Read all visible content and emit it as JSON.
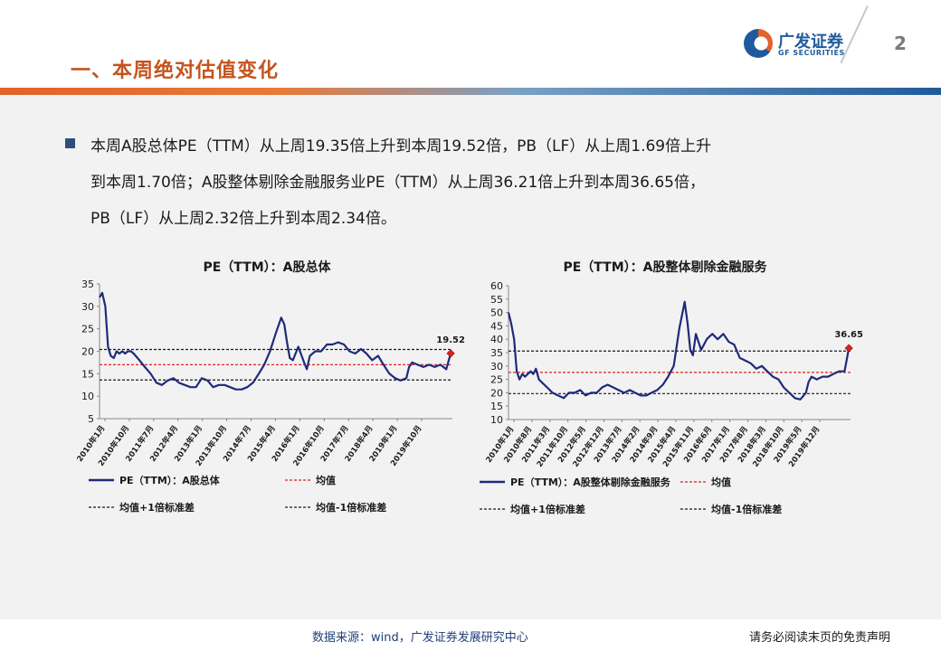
{
  "header": {
    "title": "一、本周绝对估值变化",
    "logo_cn": "广发证券",
    "logo_en": "GF SECURITIES",
    "page_number": "2",
    "colors": {
      "title": "#c4541f",
      "brand_blue": "#1f5b9c",
      "brand_orange": "#e2622a"
    }
  },
  "summary": {
    "line1": "本周A股总体PE（TTM）从上周19.35倍上升到本周19.52倍，PB（LF）从上周1.69倍上升",
    "line2": "到本周1.70倍；A股整体剔除金融服务业PE（TTM）从上周36.21倍上升到本周36.65倍，",
    "line3": "PB（LF）从上周2.32倍上升到本周2.34倍。"
  },
  "chart_data": [
    {
      "type": "line",
      "title": "PE（TTM）：A股总体",
      "ylim": [
        5,
        35
      ],
      "yticks": [
        "5",
        "10",
        "15",
        "20",
        "25",
        "30",
        "35"
      ],
      "x_tick_labels": [
        "2010年1月",
        "2010年10月",
        "2011年7月",
        "2012年4月",
        "2013年1月",
        "2013年10月",
        "2014年7月",
        "2015年4月",
        "2016年1月",
        "2016年10月",
        "2017年7月",
        "2018年4月",
        "2019年1月",
        "2019年10月"
      ],
      "x_range": [
        2010.0,
        2020.35
      ],
      "grid": false,
      "legend_position": "bottom",
      "series": [
        {
          "name": "PE（TTM）：A股总体",
          "color": "#1f2a7a",
          "x": [
            2010.0,
            2010.08,
            2010.17,
            2010.25,
            2010.33,
            2010.42,
            2010.5,
            2010.58,
            2010.67,
            2010.75,
            2010.83,
            2010.92,
            2011.0,
            2011.17,
            2011.33,
            2011.5,
            2011.67,
            2011.83,
            2012.0,
            2012.17,
            2012.33,
            2012.5,
            2012.67,
            2012.83,
            2013.0,
            2013.17,
            2013.33,
            2013.5,
            2013.67,
            2013.83,
            2014.0,
            2014.17,
            2014.33,
            2014.5,
            2014.67,
            2014.83,
            2015.0,
            2015.17,
            2015.33,
            2015.42,
            2015.5,
            2015.58,
            2015.67,
            2015.83,
            2016.0,
            2016.08,
            2016.17,
            2016.33,
            2016.5,
            2016.67,
            2016.83,
            2017.0,
            2017.17,
            2017.33,
            2017.5,
            2017.67,
            2017.83,
            2018.0,
            2018.17,
            2018.33,
            2018.5,
            2018.67,
            2018.83,
            2019.0,
            2019.08,
            2019.17,
            2019.33,
            2019.5,
            2019.67,
            2019.83,
            2020.0,
            2020.17,
            2020.3
          ],
          "values": [
            32,
            33,
            30,
            21,
            19,
            18.5,
            20,
            19.5,
            20,
            19.5,
            20,
            20,
            19.5,
            18,
            16.5,
            15,
            13,
            12.5,
            13.5,
            14,
            13,
            12.5,
            12,
            12,
            14,
            13.5,
            12,
            12.5,
            12.5,
            12,
            11.5,
            11.5,
            12,
            13,
            15,
            17,
            20,
            24,
            27.5,
            26,
            22,
            18.5,
            18,
            21,
            17.5,
            16,
            19,
            20,
            20,
            21.5,
            21.5,
            22,
            21.5,
            20,
            19.5,
            20.5,
            19.5,
            18,
            19,
            17,
            15,
            14,
            13.5,
            14,
            16.5,
            17.5,
            17,
            16.5,
            17,
            16.5,
            17,
            16,
            19.52
          ]
        },
        {
          "name": "均值",
          "color": "#e02020",
          "values": [
            17.0
          ]
        },
        {
          "name": "均值+1倍标准差",
          "color": "#1a1a1a",
          "values": [
            20.4
          ]
        },
        {
          "name": "均值-1倍标准差",
          "color": "#1a1a1a",
          "values": [
            13.6
          ]
        }
      ],
      "end_label": "19.52",
      "end_value": 19.52
    },
    {
      "type": "line",
      "title": "PE（TTM）：A股整体剔除金融服务",
      "ylim": [
        10,
        60
      ],
      "yticks": [
        "10",
        "15",
        "20",
        "25",
        "30",
        "35",
        "40",
        "45",
        "50",
        "55",
        "60"
      ],
      "x_tick_labels": [
        "2010年1月",
        "2010年8月",
        "2011年3月",
        "2011年10月",
        "2012年5月",
        "2012年12月",
        "2013年7月",
        "2014年2月",
        "2014年9月",
        "2015年4月",
        "2015年11月",
        "2016年6月",
        "2017年1月",
        "2017年8月",
        "2018年3月",
        "2018年10月",
        "2019年5月",
        "2019年12月"
      ],
      "x_range": [
        2010.0,
        2020.35
      ],
      "grid": false,
      "legend_position": "bottom",
      "series": [
        {
          "name": "PE（TTM）：A股整体剔除金融服务",
          "color": "#1f2a7a",
          "x": [
            2010.0,
            2010.08,
            2010.17,
            2010.25,
            2010.33,
            2010.42,
            2010.5,
            2010.58,
            2010.67,
            2010.75,
            2010.83,
            2010.92,
            2011.0,
            2011.17,
            2011.33,
            2011.5,
            2011.67,
            2011.83,
            2012.0,
            2012.17,
            2012.33,
            2012.5,
            2012.67,
            2012.83,
            2013.0,
            2013.17,
            2013.33,
            2013.5,
            2013.67,
            2013.83,
            2014.0,
            2014.17,
            2014.33,
            2014.5,
            2014.67,
            2014.83,
            2015.0,
            2015.17,
            2015.33,
            2015.42,
            2015.5,
            2015.58,
            2015.67,
            2015.83,
            2016.0,
            2016.08,
            2016.17,
            2016.33,
            2016.5,
            2016.67,
            2016.83,
            2017.0,
            2017.17,
            2017.33,
            2017.5,
            2017.67,
            2017.83,
            2018.0,
            2018.17,
            2018.33,
            2018.5,
            2018.67,
            2018.83,
            2019.0,
            2019.08,
            2019.17,
            2019.33,
            2019.5,
            2019.67,
            2019.83,
            2020.0,
            2020.17,
            2020.3
          ],
          "values": [
            50,
            46,
            40,
            28,
            25,
            27,
            26,
            27,
            28,
            27,
            29,
            25,
            24,
            22,
            20,
            19,
            18,
            20,
            20,
            21,
            19,
            20,
            20,
            22,
            23,
            22,
            21,
            20,
            21,
            20,
            19,
            19,
            20,
            21,
            23,
            26,
            30,
            44,
            54,
            46,
            36,
            34,
            42,
            36,
            40,
            41,
            42,
            40,
            42,
            39,
            38,
            33,
            32,
            31,
            29,
            30,
            28,
            26,
            25,
            22,
            20,
            18,
            17.5,
            20,
            24,
            26,
            25,
            26,
            26,
            27,
            28,
            28,
            36.65
          ]
        },
        {
          "name": "均值",
          "color": "#e02020",
          "values": [
            27.6
          ]
        },
        {
          "name": "均值+1倍标准差",
          "color": "#1a1a1a",
          "values": [
            35.6
          ]
        },
        {
          "name": "均值-1倍标准差",
          "color": "#1a1a1a",
          "values": [
            19.7
          ]
        }
      ],
      "end_label": "36.65",
      "end_value": 36.65
    }
  ],
  "footer": {
    "source": "数据来源：wind，广发证券发展研究中心",
    "disclaimer": "请务必阅读末页的免责声明"
  }
}
